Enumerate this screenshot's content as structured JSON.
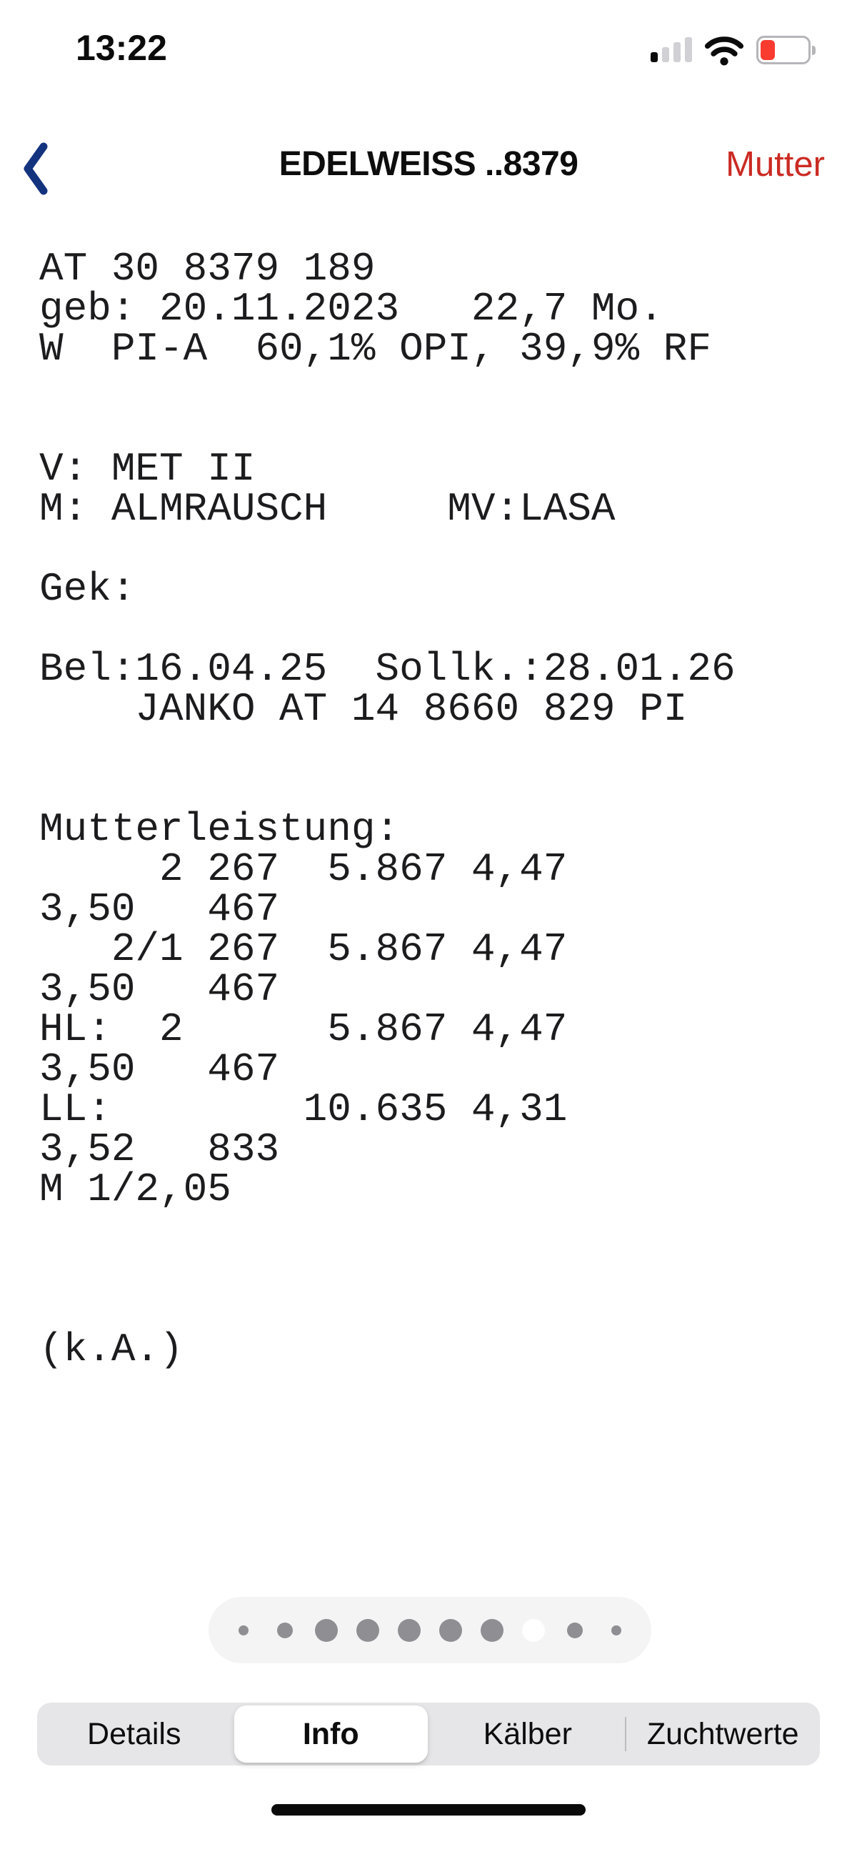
{
  "status_bar": {
    "time": "13:22"
  },
  "nav": {
    "title": "EDELWEISS ..8379",
    "action_label": "Mutter"
  },
  "colors": {
    "text_color": "#1b1b1d",
    "back_blue": "#14337F",
    "action_red": "#CB2B23",
    "battery_red": "#FA3B30",
    "battery_frame": "#B5B5BA",
    "bar_gray": "#D0D0D5",
    "dot_gray": "#8E8E93",
    "dot_active": "#FFFFFF",
    "capsule_bg": "#F4F4F5",
    "segment_bg": "#E6E6E8",
    "divider_gray": "#BCBCBF"
  },
  "animal_info": {
    "lines": [
      "AT 30 8379 189",
      "geb: 20.11.2023   22,7 Mo.",
      "W  PI-A  60,1% OPI, 39,9% RF",
      "",
      "",
      "V: MET II",
      "M: ALMRAUSCH     MV:LASA",
      "",
      "Gek:",
      "",
      "Bel:16.04.25  Sollk.:28.01.26",
      "    JANKO AT 14 8660 829 PI",
      "",
      "",
      "Mutterleistung:",
      "     2 267  5.867 4,47",
      "3,50   467",
      "   2/1 267  5.867 4,47",
      "3,50   467",
      "HL:  2      5.867 4,47",
      "3,50   467",
      "LL:        10.635 4,31",
      "3,52   833",
      "M 1/2,05",
      "",
      "",
      "",
      "(k.A.)"
    ]
  },
  "page_control": {
    "dot_sizes": [
      14,
      22,
      32,
      32,
      32,
      32,
      32,
      32,
      22,
      14
    ],
    "active_index": 7
  },
  "tabs": {
    "items": [
      {
        "label": "Details",
        "selected": false
      },
      {
        "label": "Info",
        "selected": true
      },
      {
        "label": "Kälber",
        "selected": false
      },
      {
        "label": "Zuchtwerte",
        "selected": false
      }
    ]
  }
}
